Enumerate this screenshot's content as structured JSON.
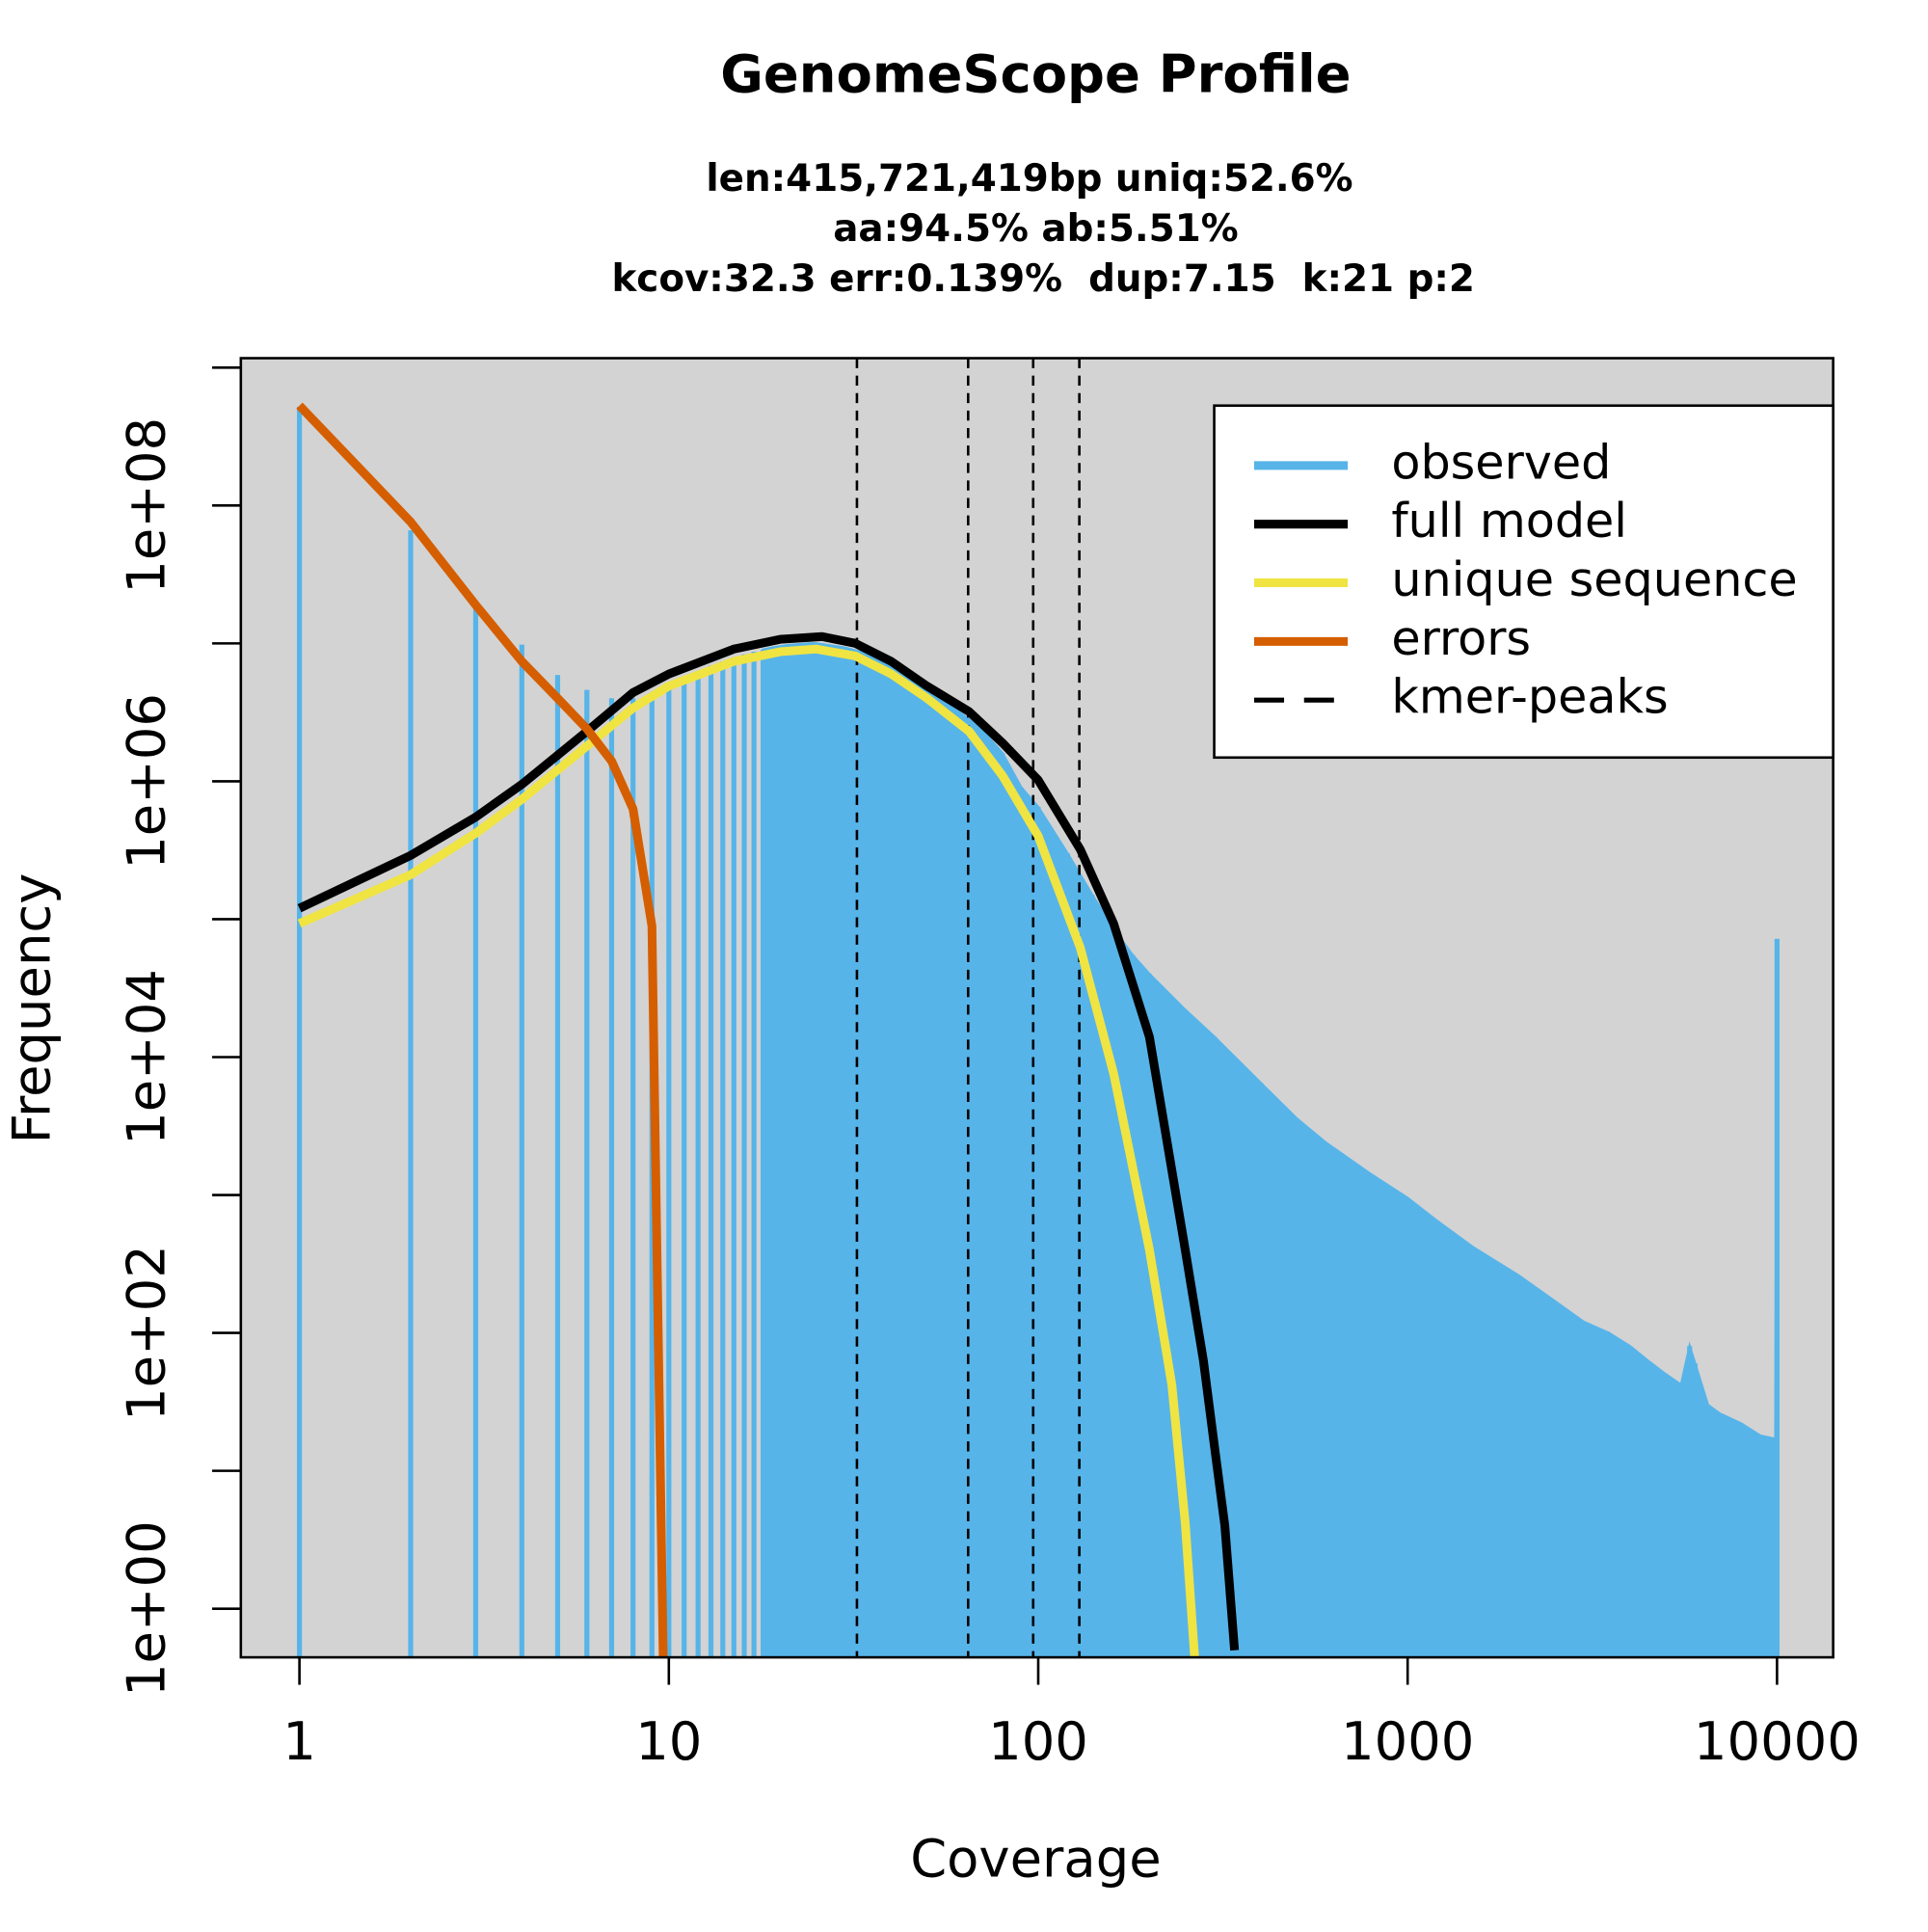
{
  "chart_data": {
    "type": "line",
    "title": "GenomeScope Profile",
    "subtitle": [
      "len:415,721,419bp uniq:52.6%",
      "aa:94.5% ab:5.51%",
      "kcov:32.3 err:0.139%  dup:7.15  k:21 p:2"
    ],
    "x_label": "Coverage",
    "y_label": "Frequency",
    "xlog": true,
    "ylog": true,
    "xlim": [
      0.694,
      14190
    ],
    "ylim": [
      0.444,
      1170000000
    ],
    "xticks": [
      1,
      10,
      100,
      1000,
      10000
    ],
    "yticks": [
      {
        "value": 1,
        "label": "1e+00"
      },
      {
        "value": 100,
        "label": "1e+02"
      },
      {
        "value": 10000,
        "label": "1e+04"
      },
      {
        "value": 1000000,
        "label": "1e+06"
      },
      {
        "value": 100000000,
        "label": "1e+08"
      }
    ],
    "yminor_ticks": [
      10,
      1000,
      100000,
      10000000,
      1000000000
    ],
    "background": "#d3d3d3",
    "legend": "top-right",
    "series": [
      {
        "name": "observed",
        "color": "#56b4e9",
        "draw": "spikes",
        "x": [
          1,
          2,
          3,
          4,
          5,
          6,
          7,
          8,
          9,
          10,
          11,
          12,
          13,
          14,
          15,
          16,
          17,
          18,
          19,
          20,
          21,
          22,
          23,
          24,
          25,
          30,
          35,
          40,
          50,
          60,
          70,
          80,
          90,
          100,
          120,
          140,
          160,
          180,
          200,
          250,
          300,
          400,
          500,
          600,
          800,
          1000,
          1200,
          1500,
          2000,
          2500,
          3000,
          3500,
          4000,
          4500,
          5000,
          5500,
          5800,
          6000,
          6500,
          7000,
          8000,
          9000,
          9900,
          10000
        ],
        "values": [
          520000000,
          66000000,
          18000000,
          9800000,
          5900000,
          4600000,
          4000000,
          4000000,
          4400000,
          5000000,
          5700000,
          6300000,
          6900000,
          7400000,
          7900000,
          8300000,
          8700000,
          9000000,
          9300000,
          9500000,
          9700000,
          9800000,
          9900000,
          10000000,
          10000000,
          9300000,
          8300000,
          7000000,
          4500000,
          3300000,
          2400000,
          1600000,
          900000,
          650000,
          300000,
          150000,
          85000,
          55000,
          40000,
          22000,
          14000,
          6500,
          3600,
          2400,
          1400,
          950,
          650,
          420,
          260,
          170,
          120,
          100,
          80,
          62,
          50,
          42,
          80,
          60,
          30,
          26,
          22,
          18,
          17,
          72000
        ]
      },
      {
        "name": "full model",
        "color": "#000000",
        "draw": "line",
        "x": [
          1,
          2,
          3,
          4,
          6,
          8,
          10,
          15,
          20,
          26,
          32,
          40,
          50,
          65,
          80,
          100,
          130,
          160,
          200,
          250,
          280,
          300,
          320,
          340
        ],
        "values": [
          120000,
          290000,
          550000,
          950000,
          2300000,
          4400000,
          6000000,
          9100000,
          10700000,
          11200000,
          10000000,
          7400000,
          4900000,
          3200000,
          1900000,
          1020000,
          320000,
          93000,
          14000,
          400,
          63,
          15,
          4,
          0.5
        ]
      },
      {
        "name": "unique sequence",
        "color": "#f0e442",
        "draw": "line",
        "x": [
          1,
          2,
          3,
          4,
          6,
          8,
          10,
          15,
          20,
          25,
          32,
          40,
          50,
          65,
          80,
          100,
          130,
          160,
          200,
          230,
          250,
          265
        ],
        "values": [
          93000,
          210000,
          420000,
          740000,
          1800000,
          3400000,
          4900000,
          7400000,
          8700000,
          9100000,
          8100000,
          6000000,
          4000000,
          2300000,
          1100000,
          400000,
          62000,
          7600,
          400,
          42,
          4.2,
          0.45
        ]
      },
      {
        "name": "errors",
        "color": "#d55e00",
        "draw": "line",
        "x": [
          1,
          2,
          3,
          4,
          5,
          6,
          7,
          8,
          9,
          10
        ],
        "values": [
          530000000,
          76000000,
          19000000,
          7400000,
          4000000,
          2400000,
          1400000,
          630000,
          89000,
          0.001
        ]
      }
    ],
    "kmer_peaks": {
      "name": "kmer-peaks",
      "color": "#000000",
      "values": [
        32.3,
        64.6,
        96.9,
        129.2
      ]
    }
  }
}
